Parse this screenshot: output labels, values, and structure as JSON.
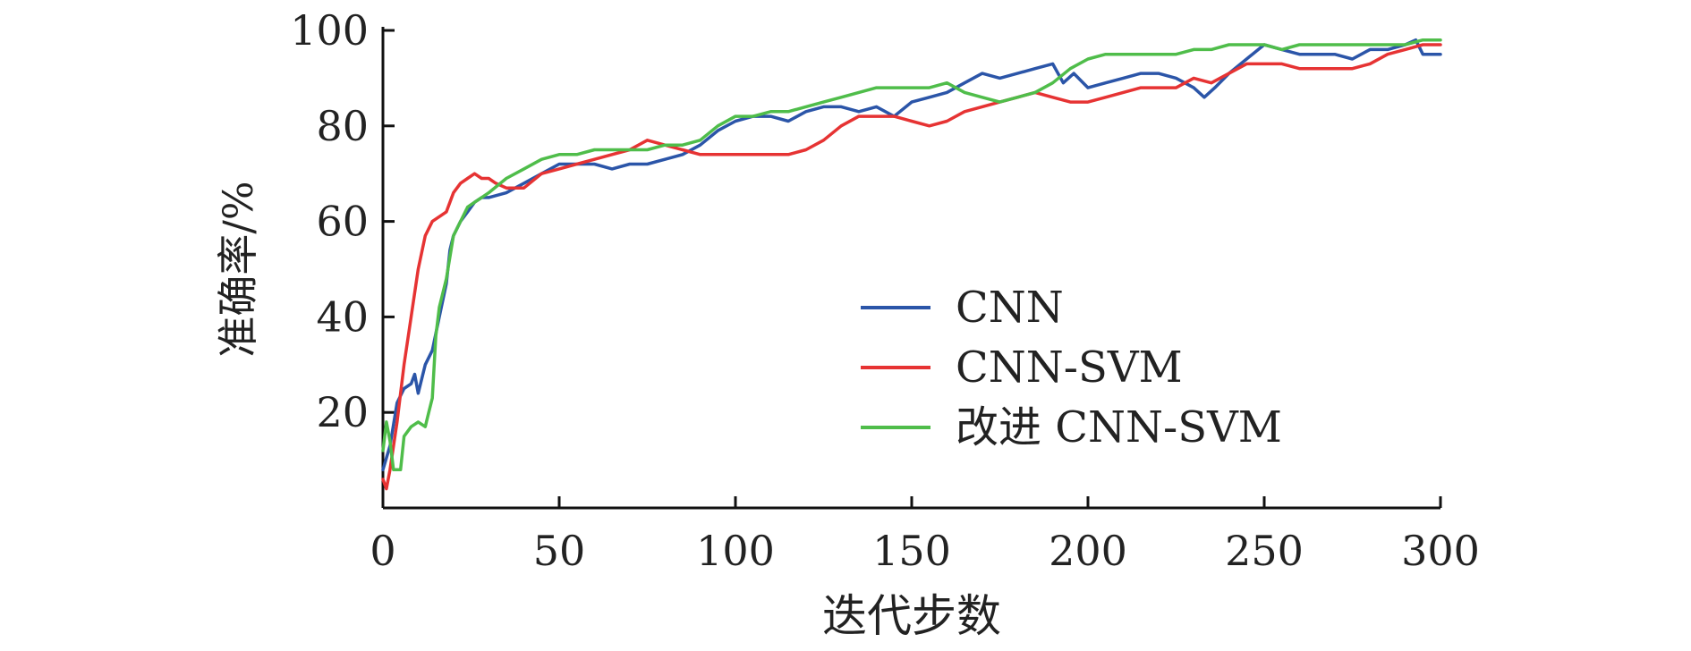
{
  "chart_data": {
    "type": "line",
    "title": "",
    "xlabel": "迭代步数",
    "ylabel": "准确率/%",
    "xlim": [
      0,
      300
    ],
    "ylim": [
      0,
      100
    ],
    "x_ticks": [
      0,
      50,
      100,
      150,
      200,
      250,
      300
    ],
    "y_ticks": [
      20,
      40,
      60,
      80,
      100
    ],
    "grid": false,
    "legend_position": "center-right",
    "series": [
      {
        "name": "CNN",
        "color": "#2b55a8",
        "points": [
          [
            0,
            8
          ],
          [
            2,
            13
          ],
          [
            4,
            22
          ],
          [
            6,
            25
          ],
          [
            8,
            26
          ],
          [
            9,
            28
          ],
          [
            10,
            24
          ],
          [
            12,
            30
          ],
          [
            14,
            33
          ],
          [
            16,
            40
          ],
          [
            18,
            47
          ],
          [
            19,
            54
          ],
          [
            20,
            57
          ],
          [
            22,
            60
          ],
          [
            24,
            62
          ],
          [
            26,
            64
          ],
          [
            28,
            65
          ],
          [
            30,
            65
          ],
          [
            35,
            66
          ],
          [
            40,
            68
          ],
          [
            45,
            70
          ],
          [
            50,
            72
          ],
          [
            55,
            72
          ],
          [
            60,
            72
          ],
          [
            65,
            71
          ],
          [
            70,
            72
          ],
          [
            75,
            72
          ],
          [
            80,
            73
          ],
          [
            85,
            74
          ],
          [
            90,
            76
          ],
          [
            95,
            79
          ],
          [
            100,
            81
          ],
          [
            105,
            82
          ],
          [
            110,
            82
          ],
          [
            115,
            81
          ],
          [
            120,
            83
          ],
          [
            125,
            84
          ],
          [
            130,
            84
          ],
          [
            135,
            83
          ],
          [
            140,
            84
          ],
          [
            145,
            82
          ],
          [
            150,
            85
          ],
          [
            155,
            86
          ],
          [
            160,
            87
          ],
          [
            165,
            89
          ],
          [
            170,
            91
          ],
          [
            175,
            90
          ],
          [
            180,
            91
          ],
          [
            185,
            92
          ],
          [
            190,
            93
          ],
          [
            193,
            89
          ],
          [
            196,
            91
          ],
          [
            200,
            88
          ],
          [
            205,
            89
          ],
          [
            210,
            90
          ],
          [
            215,
            91
          ],
          [
            220,
            91
          ],
          [
            225,
            90
          ],
          [
            230,
            88
          ],
          [
            233,
            86
          ],
          [
            236,
            88
          ],
          [
            240,
            91
          ],
          [
            245,
            94
          ],
          [
            250,
            97
          ],
          [
            255,
            96
          ],
          [
            260,
            95
          ],
          [
            265,
            95
          ],
          [
            270,
            95
          ],
          [
            275,
            94
          ],
          [
            280,
            96
          ],
          [
            285,
            96
          ],
          [
            290,
            97
          ],
          [
            293,
            98
          ],
          [
            295,
            95
          ],
          [
            300,
            95
          ]
        ]
      },
      {
        "name": "CNN-SVM",
        "color": "#e63333",
        "points": [
          [
            0,
            6
          ],
          [
            1,
            4
          ],
          [
            2,
            8
          ],
          [
            4,
            18
          ],
          [
            6,
            30
          ],
          [
            8,
            40
          ],
          [
            10,
            50
          ],
          [
            12,
            57
          ],
          [
            14,
            60
          ],
          [
            16,
            61
          ],
          [
            18,
            62
          ],
          [
            20,
            66
          ],
          [
            22,
            68
          ],
          [
            24,
            69
          ],
          [
            26,
            70
          ],
          [
            28,
            69
          ],
          [
            30,
            69
          ],
          [
            32,
            68
          ],
          [
            35,
            67
          ],
          [
            40,
            67
          ],
          [
            45,
            70
          ],
          [
            50,
            71
          ],
          [
            55,
            72
          ],
          [
            60,
            73
          ],
          [
            65,
            74
          ],
          [
            70,
            75
          ],
          [
            75,
            77
          ],
          [
            80,
            76
          ],
          [
            85,
            75
          ],
          [
            90,
            74
          ],
          [
            95,
            74
          ],
          [
            100,
            74
          ],
          [
            105,
            74
          ],
          [
            110,
            74
          ],
          [
            115,
            74
          ],
          [
            120,
            75
          ],
          [
            125,
            77
          ],
          [
            130,
            80
          ],
          [
            135,
            82
          ],
          [
            140,
            82
          ],
          [
            145,
            82
          ],
          [
            150,
            81
          ],
          [
            155,
            80
          ],
          [
            160,
            81
          ],
          [
            165,
            83
          ],
          [
            170,
            84
          ],
          [
            175,
            85
          ],
          [
            180,
            86
          ],
          [
            185,
            87
          ],
          [
            190,
            86
          ],
          [
            195,
            85
          ],
          [
            200,
            85
          ],
          [
            205,
            86
          ],
          [
            210,
            87
          ],
          [
            215,
            88
          ],
          [
            220,
            88
          ],
          [
            225,
            88
          ],
          [
            230,
            90
          ],
          [
            235,
            89
          ],
          [
            240,
            91
          ],
          [
            245,
            93
          ],
          [
            250,
            93
          ],
          [
            255,
            93
          ],
          [
            260,
            92
          ],
          [
            265,
            92
          ],
          [
            270,
            92
          ],
          [
            275,
            92
          ],
          [
            280,
            93
          ],
          [
            285,
            95
          ],
          [
            290,
            96
          ],
          [
            295,
            97
          ],
          [
            300,
            97
          ]
        ]
      },
      {
        "name": "改进 CNN-SVM",
        "color": "#4fbd4a",
        "points": [
          [
            0,
            12
          ],
          [
            1,
            18
          ],
          [
            2,
            14
          ],
          [
            3,
            8
          ],
          [
            5,
            8
          ],
          [
            6,
            15
          ],
          [
            8,
            17
          ],
          [
            10,
            18
          ],
          [
            12,
            17
          ],
          [
            13,
            20
          ],
          [
            14,
            23
          ],
          [
            15,
            36
          ],
          [
            16,
            42
          ],
          [
            18,
            48
          ],
          [
            20,
            57
          ],
          [
            22,
            60
          ],
          [
            24,
            63
          ],
          [
            26,
            64
          ],
          [
            28,
            65
          ],
          [
            30,
            66
          ],
          [
            35,
            69
          ],
          [
            40,
            71
          ],
          [
            45,
            73
          ],
          [
            50,
            74
          ],
          [
            55,
            74
          ],
          [
            60,
            75
          ],
          [
            65,
            75
          ],
          [
            70,
            75
          ],
          [
            75,
            75
          ],
          [
            80,
            76
          ],
          [
            85,
            76
          ],
          [
            90,
            77
          ],
          [
            95,
            80
          ],
          [
            100,
            82
          ],
          [
            105,
            82
          ],
          [
            110,
            83
          ],
          [
            115,
            83
          ],
          [
            120,
            84
          ],
          [
            125,
            85
          ],
          [
            130,
            86
          ],
          [
            135,
            87
          ],
          [
            140,
            88
          ],
          [
            145,
            88
          ],
          [
            150,
            88
          ],
          [
            155,
            88
          ],
          [
            160,
            89
          ],
          [
            165,
            87
          ],
          [
            170,
            86
          ],
          [
            175,
            85
          ],
          [
            180,
            86
          ],
          [
            185,
            87
          ],
          [
            190,
            89
          ],
          [
            195,
            92
          ],
          [
            200,
            94
          ],
          [
            205,
            95
          ],
          [
            210,
            95
          ],
          [
            215,
            95
          ],
          [
            220,
            95
          ],
          [
            225,
            95
          ],
          [
            230,
            96
          ],
          [
            235,
            96
          ],
          [
            240,
            97
          ],
          [
            245,
            97
          ],
          [
            250,
            97
          ],
          [
            255,
            96
          ],
          [
            260,
            97
          ],
          [
            265,
            97
          ],
          [
            270,
            97
          ],
          [
            275,
            97
          ],
          [
            280,
            97
          ],
          [
            285,
            97
          ],
          [
            290,
            97
          ],
          [
            295,
            98
          ],
          [
            300,
            98
          ]
        ]
      }
    ]
  }
}
